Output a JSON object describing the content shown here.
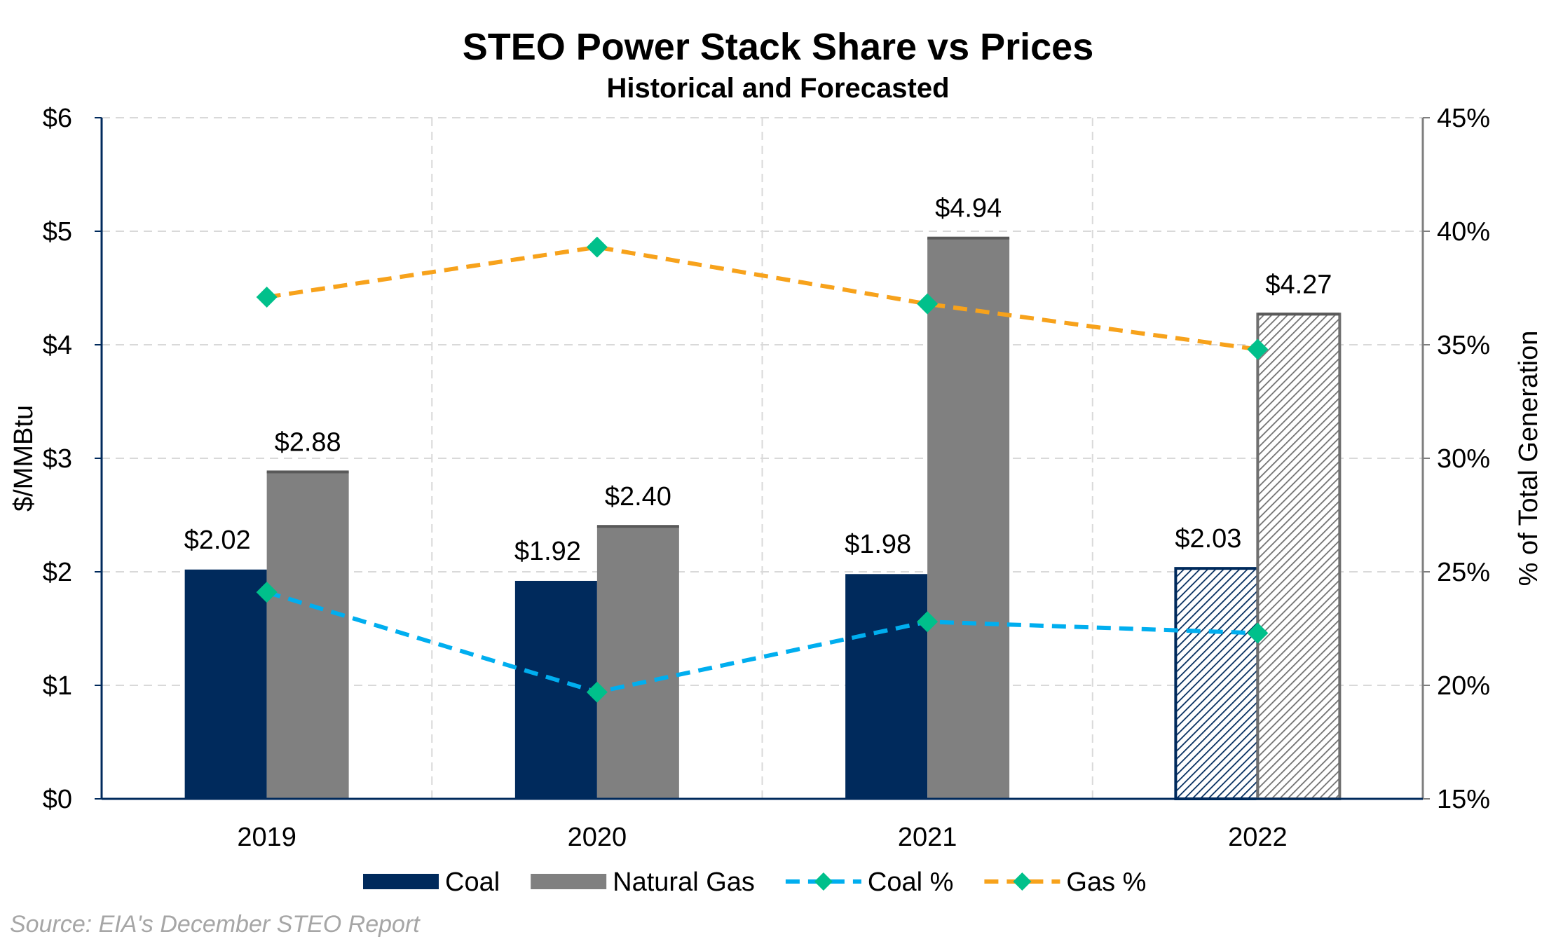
{
  "chart_data": {
    "type": "bar",
    "title": "STEO Power Stack Share vs Prices",
    "subtitle": "Historical and Forecasted",
    "categories": [
      "2019",
      "2020",
      "2021",
      "2022"
    ],
    "ylabel": "$/MMBtu",
    "y2label": "% of Total Generation",
    "ylim": [
      0,
      6
    ],
    "y2lim": [
      15,
      45
    ],
    "yticks": [
      "$0",
      "$1",
      "$2",
      "$3",
      "$4",
      "$5",
      "$6"
    ],
    "y2ticks": [
      "15%",
      "20%",
      "25%",
      "30%",
      "35%",
      "40%",
      "45%"
    ],
    "grid": true,
    "legend_position": "bottom",
    "series": [
      {
        "name": "Coal",
        "kind": "bar",
        "axis": "left",
        "color": "#002a5c",
        "values": [
          2.02,
          1.92,
          1.98,
          2.03
        ],
        "labels": [
          "$2.02",
          "$1.92",
          "$1.98",
          "$2.03"
        ],
        "forecast": [
          false,
          false,
          false,
          true
        ]
      },
      {
        "name": "Natural Gas",
        "kind": "bar",
        "axis": "left",
        "color": "#808080",
        "values": [
          2.88,
          2.4,
          4.94,
          4.27
        ],
        "labels": [
          "$2.88",
          "$2.40",
          "$4.94",
          "$4.27"
        ],
        "forecast": [
          false,
          false,
          false,
          true
        ]
      },
      {
        "name": "Coal %",
        "kind": "line",
        "axis": "right",
        "color": "#00aeef",
        "marker_color": "#00c08b",
        "values": [
          24.1,
          19.7,
          22.8,
          22.3
        ]
      },
      {
        "name": "Gas %",
        "kind": "line",
        "axis": "right",
        "color": "#f7a21b",
        "marker_color": "#00c08b",
        "values": [
          37.1,
          39.3,
          36.8,
          34.8
        ]
      }
    ],
    "source": "Source: EIA's December STEO Report"
  }
}
